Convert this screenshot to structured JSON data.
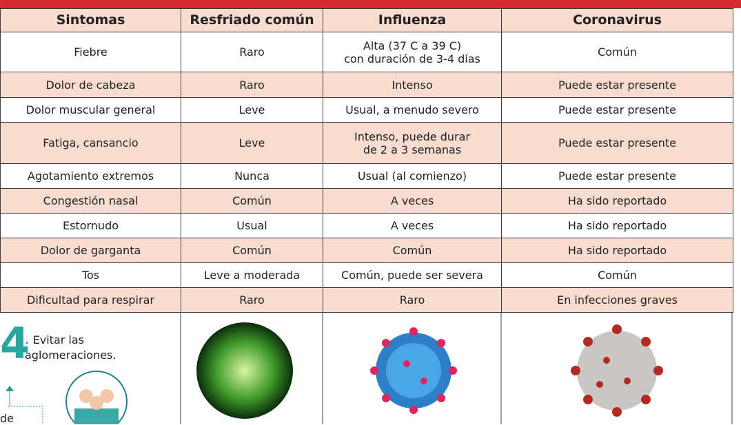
{
  "table": {
    "header": [
      "Sintomas",
      "Resfriado común",
      "Influenza",
      "Coronavirus"
    ],
    "rows": [
      [
        "Fiebre",
        "Raro",
        "Alta (37 C a 39 C)\ncon duración de 3-4 días",
        "Común"
      ],
      [
        "Dolor de cabeza",
        "Raro",
        "Intenso",
        "Puede estar presente"
      ],
      [
        "Dolor muscular general",
        "Leve",
        "Usual, a menudo severo",
        "Puede estar presente"
      ],
      [
        "Fatiga, cansancio",
        "Leve",
        "Intenso, puede durar\nde 2 a 3 semanas",
        "Puede estar presente"
      ],
      [
        "Agotamiento extremos",
        "Nunca",
        "Usual (al comienzo)",
        "Puede estar presente"
      ],
      [
        "Congestión nasal",
        "Común",
        "A veces",
        "Ha sido reportado"
      ],
      [
        "Estornudo",
        "Usual",
        "A veces",
        "Ha sido reportado"
      ],
      [
        "Dolor de garganta",
        "Común",
        "Común",
        "Ha sido reportado"
      ],
      [
        "Tos",
        "Leve a moderada",
        "Común, puede ser severa",
        "Común"
      ],
      [
        "Dificultad para respirar",
        "Raro",
        "Raro",
        "En infecciones graves"
      ]
    ]
  },
  "side": {
    "number": "4",
    "text": "Evitar las aglomeraciones.",
    "fragment": "de"
  }
}
